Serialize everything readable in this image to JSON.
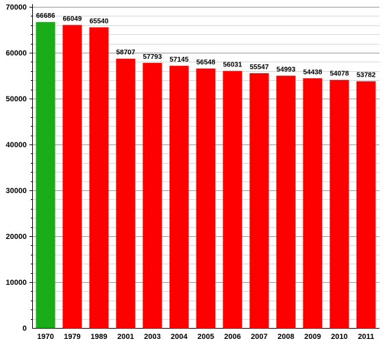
{
  "chart_data": {
    "type": "bar",
    "title": "",
    "xlabel": "",
    "ylabel": "",
    "categories": [
      "1970",
      "1979",
      "1989",
      "2001",
      "2003",
      "2004",
      "2005",
      "2006",
      "2007",
      "2008",
      "2009",
      "2010",
      "2011"
    ],
    "values": [
      66686,
      66049,
      65540,
      58707,
      57793,
      57145,
      56548,
      56031,
      55547,
      54993,
      54438,
      54078,
      53782
    ],
    "data_labels": [
      "66686",
      "66049",
      "65540",
      "58707",
      "57793",
      "57145",
      "56548",
      "56031",
      "55547",
      "54993",
      "54438",
      "54078",
      "53782"
    ],
    "ylim": [
      0,
      70000
    ],
    "yticks": [
      0,
      10000,
      20000,
      30000,
      40000,
      50000,
      60000,
      70000
    ],
    "ytick_labels": [
      "0",
      "10000",
      "20000",
      "30000",
      "40000",
      "50000",
      "60000",
      "70000"
    ],
    "grid": true,
    "legend": "none",
    "colors": {
      "highlight": "#1aad1a",
      "bar": "#ff0000",
      "grid_major": "#9a9a9a",
      "grid_minor": "#d6d6d6",
      "axis": "#000000",
      "text": "#000000"
    },
    "highlight_index": 0
  }
}
